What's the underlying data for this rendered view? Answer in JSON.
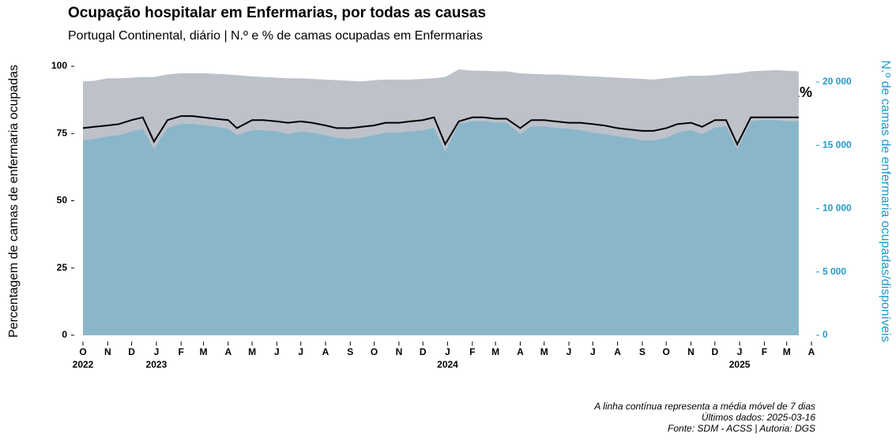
{
  "chart_data": {
    "type": "combo",
    "title": "Ocupação hospitalar em Enfermarias, por todas as causas",
    "subtitle": "Portugal Continental, diário | N.º e % de camas ocupadas em Enfermarias",
    "ylabel": "Percentagem de camas de enfermaria ocupadas",
    "y2label": "N.º de camas de enfermaria ocupadas/disponíveis",
    "annotation": "81%",
    "notes": [
      "A linha contínua representa a média móvel de 7 dias",
      "Últimos dados: 2025-03-16",
      "Fonte: SDM - ACSS | Autoria: DGS"
    ],
    "xlim": [
      "2022-10-01",
      "2025-04-01"
    ],
    "xticks": [
      {
        "value": "2022-10-01",
        "label": "O"
      },
      {
        "value": "2022-11-01",
        "label": "N"
      },
      {
        "value": "2022-12-01",
        "label": "D"
      },
      {
        "value": "2023-01-01",
        "label": "J"
      },
      {
        "value": "2023-02-01",
        "label": "F"
      },
      {
        "value": "2023-03-01",
        "label": "M"
      },
      {
        "value": "2023-04-01",
        "label": "A"
      },
      {
        "value": "2023-05-01",
        "label": "M"
      },
      {
        "value": "2023-06-01",
        "label": "J"
      },
      {
        "value": "2023-07-01",
        "label": "J"
      },
      {
        "value": "2023-08-01",
        "label": "A"
      },
      {
        "value": "2023-09-01",
        "label": "S"
      },
      {
        "value": "2023-10-01",
        "label": "O"
      },
      {
        "value": "2023-11-01",
        "label": "N"
      },
      {
        "value": "2023-12-01",
        "label": "D"
      },
      {
        "value": "2024-01-01",
        "label": "J"
      },
      {
        "value": "2024-02-01",
        "label": "F"
      },
      {
        "value": "2024-03-01",
        "label": "M"
      },
      {
        "value": "2024-04-01",
        "label": "A"
      },
      {
        "value": "2024-05-01",
        "label": "M"
      },
      {
        "value": "2024-06-01",
        "label": "J"
      },
      {
        "value": "2024-07-01",
        "label": "J"
      },
      {
        "value": "2024-08-01",
        "label": "A"
      },
      {
        "value": "2024-09-01",
        "label": "S"
      },
      {
        "value": "2024-10-01",
        "label": "O"
      },
      {
        "value": "2024-11-01",
        "label": "N"
      },
      {
        "value": "2024-12-01",
        "label": "D"
      },
      {
        "value": "2025-01-01",
        "label": "J"
      },
      {
        "value": "2025-02-01",
        "label": "F"
      },
      {
        "value": "2025-03-01",
        "label": "M"
      },
      {
        "value": "2025-04-01",
        "label": "A"
      }
    ],
    "xtick_years": [
      {
        "value": "2022-10-01",
        "label": "2022"
      },
      {
        "value": "2023-01-01",
        "label": "2023"
      },
      {
        "value": "2024-01-01",
        "label": "2024"
      },
      {
        "value": "2025-01-01",
        "label": "2025"
      }
    ],
    "ylim": [
      0,
      100
    ],
    "yticks": [
      0,
      25,
      50,
      75,
      100
    ],
    "y2lim": [
      0,
      21250
    ],
    "y2ticks": [
      0,
      {
        "value": 5000,
        "label": "5 000"
      },
      {
        "value": 10000,
        "label": "10 000"
      },
      {
        "value": 15000,
        "label": "15 000"
      },
      {
        "value": 20000,
        "label": "20 000"
      }
    ],
    "y2color": "#1f9bcf",
    "x": [
      "2022-10-01",
      "2022-10-15",
      "2022-11-01",
      "2022-11-15",
      "2022-12-01",
      "2022-12-15",
      "2022-12-29",
      "2023-01-15",
      "2023-02-01",
      "2023-02-15",
      "2023-03-01",
      "2023-03-15",
      "2023-04-01",
      "2023-04-12",
      "2023-05-01",
      "2023-05-15",
      "2023-06-01",
      "2023-06-15",
      "2023-07-01",
      "2023-07-15",
      "2023-08-01",
      "2023-08-15",
      "2023-09-01",
      "2023-09-15",
      "2023-10-01",
      "2023-10-15",
      "2023-11-01",
      "2023-11-15",
      "2023-12-01",
      "2023-12-15",
      "2023-12-29",
      "2024-01-15",
      "2024-02-01",
      "2024-02-15",
      "2024-03-01",
      "2024-03-15",
      "2024-04-01",
      "2024-04-15",
      "2024-05-01",
      "2024-05-15",
      "2024-06-01",
      "2024-06-15",
      "2024-07-01",
      "2024-07-15",
      "2024-08-01",
      "2024-08-15",
      "2024-09-01",
      "2024-09-15",
      "2024-10-01",
      "2024-10-15",
      "2024-11-01",
      "2024-11-15",
      "2024-12-01",
      "2024-12-15",
      "2024-12-29",
      "2025-01-15",
      "2025-02-01",
      "2025-02-15",
      "2025-03-01",
      "2025-03-16"
    ],
    "series": [
      {
        "kind": "area",
        "axis": "y2",
        "color": "#bcc1ca",
        "values": [
          20050,
          20100,
          20300,
          20300,
          20350,
          20400,
          20400,
          20600,
          20700,
          20700,
          20700,
          20650,
          20600,
          20550,
          20450,
          20400,
          20350,
          20300,
          20300,
          20250,
          20200,
          20150,
          20100,
          20050,
          20150,
          20200,
          20200,
          20200,
          20250,
          20300,
          20400,
          21000,
          20900,
          20900,
          20850,
          20850,
          20700,
          20650,
          20600,
          20600,
          20550,
          20500,
          20450,
          20400,
          20350,
          20300,
          20250,
          20200,
          20300,
          20400,
          20500,
          20500,
          20550,
          20650,
          20700,
          20850,
          20900,
          20950,
          20900,
          20850
        ]
      },
      {
        "kind": "area",
        "axis": "y2",
        "color": "#8ab6ca",
        "values": [
          15400,
          15500,
          15700,
          15800,
          16100,
          16300,
          14700,
          16400,
          16700,
          16700,
          16600,
          16500,
          16300,
          15800,
          16200,
          16200,
          16100,
          15900,
          16100,
          16000,
          15800,
          15600,
          15500,
          15600,
          15800,
          16000,
          16000,
          16100,
          16200,
          16400,
          14500,
          16700,
          16900,
          16900,
          16800,
          16800,
          15900,
          16500,
          16500,
          16400,
          16300,
          16200,
          16000,
          15900,
          15700,
          15600,
          15400,
          15400,
          15600,
          16000,
          16200,
          15900,
          16400,
          16500,
          14700,
          16900,
          17000,
          17000,
          16900,
          16900
        ]
      },
      {
        "kind": "line",
        "color": "#000000",
        "values": [
          77,
          77.5,
          78,
          78.5,
          80,
          81,
          72,
          80,
          81.5,
          81.5,
          81,
          80.5,
          80,
          77,
          80,
          80,
          79.5,
          79,
          79.5,
          79,
          78,
          77,
          77,
          77.5,
          78,
          79,
          79,
          79.5,
          80,
          81,
          71,
          79.5,
          81,
          81,
          80.5,
          80.5,
          77,
          80,
          80,
          79.5,
          79,
          79,
          78.5,
          78,
          77,
          76.5,
          76,
          76,
          77,
          78.5,
          79,
          77.5,
          80,
          80,
          71,
          81,
          81,
          81,
          81,
          81
        ]
      }
    ]
  }
}
